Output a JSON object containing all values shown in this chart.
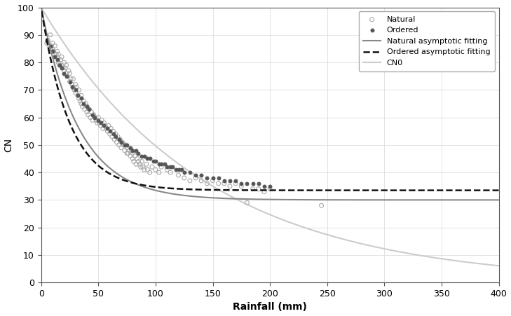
{
  "xlabel": "Rainfall (mm)",
  "ylabel": "CN",
  "xlim": [
    0,
    400
  ],
  "ylim": [
    0,
    100
  ],
  "xticks": [
    0,
    50,
    100,
    150,
    200,
    250,
    300,
    350,
    400
  ],
  "yticks": [
    0,
    10,
    20,
    30,
    40,
    50,
    60,
    70,
    80,
    90,
    100
  ],
  "natural_color": "#aaaaaa",
  "ordered_color": "#555555",
  "natural_fit_color": "#888888",
  "ordered_fit_color": "#111111",
  "cn0_color": "#cccccc",
  "natural_points": [
    [
      5,
      87
    ],
    [
      6,
      88
    ],
    [
      7,
      86
    ],
    [
      8,
      90
    ],
    [
      8,
      85
    ],
    [
      9,
      86
    ],
    [
      10,
      85
    ],
    [
      10,
      87
    ],
    [
      11,
      84
    ],
    [
      12,
      86
    ],
    [
      13,
      83
    ],
    [
      14,
      82
    ],
    [
      14,
      84
    ],
    [
      15,
      80
    ],
    [
      15,
      83
    ],
    [
      16,
      79
    ],
    [
      17,
      81
    ],
    [
      18,
      79
    ],
    [
      18,
      82
    ],
    [
      19,
      78
    ],
    [
      20,
      77
    ],
    [
      20,
      80
    ],
    [
      21,
      78
    ],
    [
      22,
      76
    ],
    [
      22,
      79
    ],
    [
      23,
      75
    ],
    [
      24,
      77
    ],
    [
      25,
      73
    ],
    [
      25,
      76
    ],
    [
      26,
      74
    ],
    [
      27,
      72
    ],
    [
      28,
      71
    ],
    [
      28,
      74
    ],
    [
      29,
      70
    ],
    [
      30,
      72
    ],
    [
      30,
      69
    ],
    [
      31,
      71
    ],
    [
      32,
      68
    ],
    [
      33,
      67
    ],
    [
      33,
      70
    ],
    [
      34,
      66
    ],
    [
      35,
      68
    ],
    [
      35,
      65
    ],
    [
      36,
      64
    ],
    [
      37,
      66
    ],
    [
      38,
      63
    ],
    [
      39,
      65
    ],
    [
      40,
      62
    ],
    [
      40,
      64
    ],
    [
      41,
      61
    ],
    [
      42,
      63
    ],
    [
      43,
      60
    ],
    [
      44,
      62
    ],
    [
      45,
      59
    ],
    [
      46,
      61
    ],
    [
      47,
      60
    ],
    [
      48,
      59
    ],
    [
      49,
      58
    ],
    [
      50,
      60
    ],
    [
      51,
      58
    ],
    [
      52,
      57
    ],
    [
      53,
      59
    ],
    [
      54,
      56
    ],
    [
      55,
      58
    ],
    [
      56,
      57
    ],
    [
      57,
      56
    ],
    [
      58,
      55
    ],
    [
      59,
      57
    ],
    [
      60,
      54
    ],
    [
      61,
      56
    ],
    [
      62,
      53
    ],
    [
      63,
      55
    ],
    [
      64,
      52
    ],
    [
      65,
      54
    ],
    [
      66,
      51
    ],
    [
      67,
      53
    ],
    [
      68,
      50
    ],
    [
      69,
      52
    ],
    [
      70,
      49
    ],
    [
      71,
      51
    ],
    [
      72,
      50
    ],
    [
      73,
      48
    ],
    [
      74,
      50
    ],
    [
      75,
      47
    ],
    [
      75,
      49
    ],
    [
      76,
      47
    ],
    [
      77,
      48
    ],
    [
      78,
      46
    ],
    [
      79,
      48
    ],
    [
      80,
      45
    ],
    [
      80,
      47
    ],
    [
      81,
      44
    ],
    [
      82,
      46
    ],
    [
      83,
      43
    ],
    [
      84,
      45
    ],
    [
      85,
      44
    ],
    [
      86,
      43
    ],
    [
      87,
      42
    ],
    [
      88,
      44
    ],
    [
      89,
      42
    ],
    [
      90,
      41
    ],
    [
      92,
      43
    ],
    [
      93,
      41
    ],
    [
      95,
      40
    ],
    [
      97,
      42
    ],
    [
      100,
      41
    ],
    [
      103,
      40
    ],
    [
      105,
      42
    ],
    [
      110,
      41
    ],
    [
      113,
      40
    ],
    [
      120,
      39
    ],
    [
      125,
      38
    ],
    [
      130,
      37
    ],
    [
      135,
      38
    ],
    [
      140,
      37
    ],
    [
      145,
      36
    ],
    [
      150,
      37
    ],
    [
      155,
      36
    ],
    [
      160,
      36
    ],
    [
      165,
      35
    ],
    [
      170,
      36
    ],
    [
      175,
      35
    ],
    [
      180,
      29
    ],
    [
      185,
      34
    ],
    [
      190,
      34
    ],
    [
      195,
      33
    ],
    [
      200,
      34
    ],
    [
      245,
      28
    ]
  ],
  "ordered_points": [
    [
      5,
      88
    ],
    [
      8,
      86
    ],
    [
      10,
      84
    ],
    [
      12,
      82
    ],
    [
      14,
      81
    ],
    [
      16,
      79
    ],
    [
      18,
      78
    ],
    [
      20,
      76
    ],
    [
      22,
      75
    ],
    [
      25,
      73
    ],
    [
      27,
      71
    ],
    [
      30,
      70
    ],
    [
      32,
      68
    ],
    [
      35,
      67
    ],
    [
      37,
      65
    ],
    [
      40,
      64
    ],
    [
      42,
      63
    ],
    [
      45,
      61
    ],
    [
      47,
      60
    ],
    [
      50,
      59
    ],
    [
      52,
      58
    ],
    [
      55,
      57
    ],
    [
      58,
      56
    ],
    [
      60,
      55
    ],
    [
      63,
      54
    ],
    [
      65,
      53
    ],
    [
      68,
      52
    ],
    [
      70,
      51
    ],
    [
      73,
      50
    ],
    [
      75,
      50
    ],
    [
      78,
      49
    ],
    [
      80,
      48
    ],
    [
      83,
      48
    ],
    [
      85,
      47
    ],
    [
      88,
      46
    ],
    [
      90,
      46
    ],
    [
      93,
      45
    ],
    [
      95,
      45
    ],
    [
      98,
      44
    ],
    [
      100,
      44
    ],
    [
      103,
      43
    ],
    [
      105,
      43
    ],
    [
      108,
      43
    ],
    [
      110,
      42
    ],
    [
      113,
      42
    ],
    [
      115,
      42
    ],
    [
      118,
      41
    ],
    [
      120,
      41
    ],
    [
      123,
      41
    ],
    [
      125,
      40
    ],
    [
      130,
      40
    ],
    [
      135,
      39
    ],
    [
      140,
      39
    ],
    [
      145,
      38
    ],
    [
      150,
      38
    ],
    [
      155,
      38
    ],
    [
      160,
      37
    ],
    [
      165,
      37
    ],
    [
      170,
      37
    ],
    [
      175,
      36
    ],
    [
      180,
      36
    ],
    [
      185,
      36
    ],
    [
      190,
      36
    ],
    [
      195,
      35
    ],
    [
      200,
      35
    ]
  ],
  "natural_fit": {
    "CN_inf": 30.0,
    "CN0": 100,
    "k": 0.03
  },
  "ordered_fit": {
    "CN_inf": 33.5,
    "CN0": 100,
    "k": 0.04
  },
  "cn0_fit": {
    "CN_inf": 0,
    "CN0": 100,
    "k": 0.007
  },
  "legend_labels": [
    "Natural",
    "Ordered",
    "Natural asymptotic fitting",
    "Ordered asymptotic fitting",
    "CN0"
  ]
}
